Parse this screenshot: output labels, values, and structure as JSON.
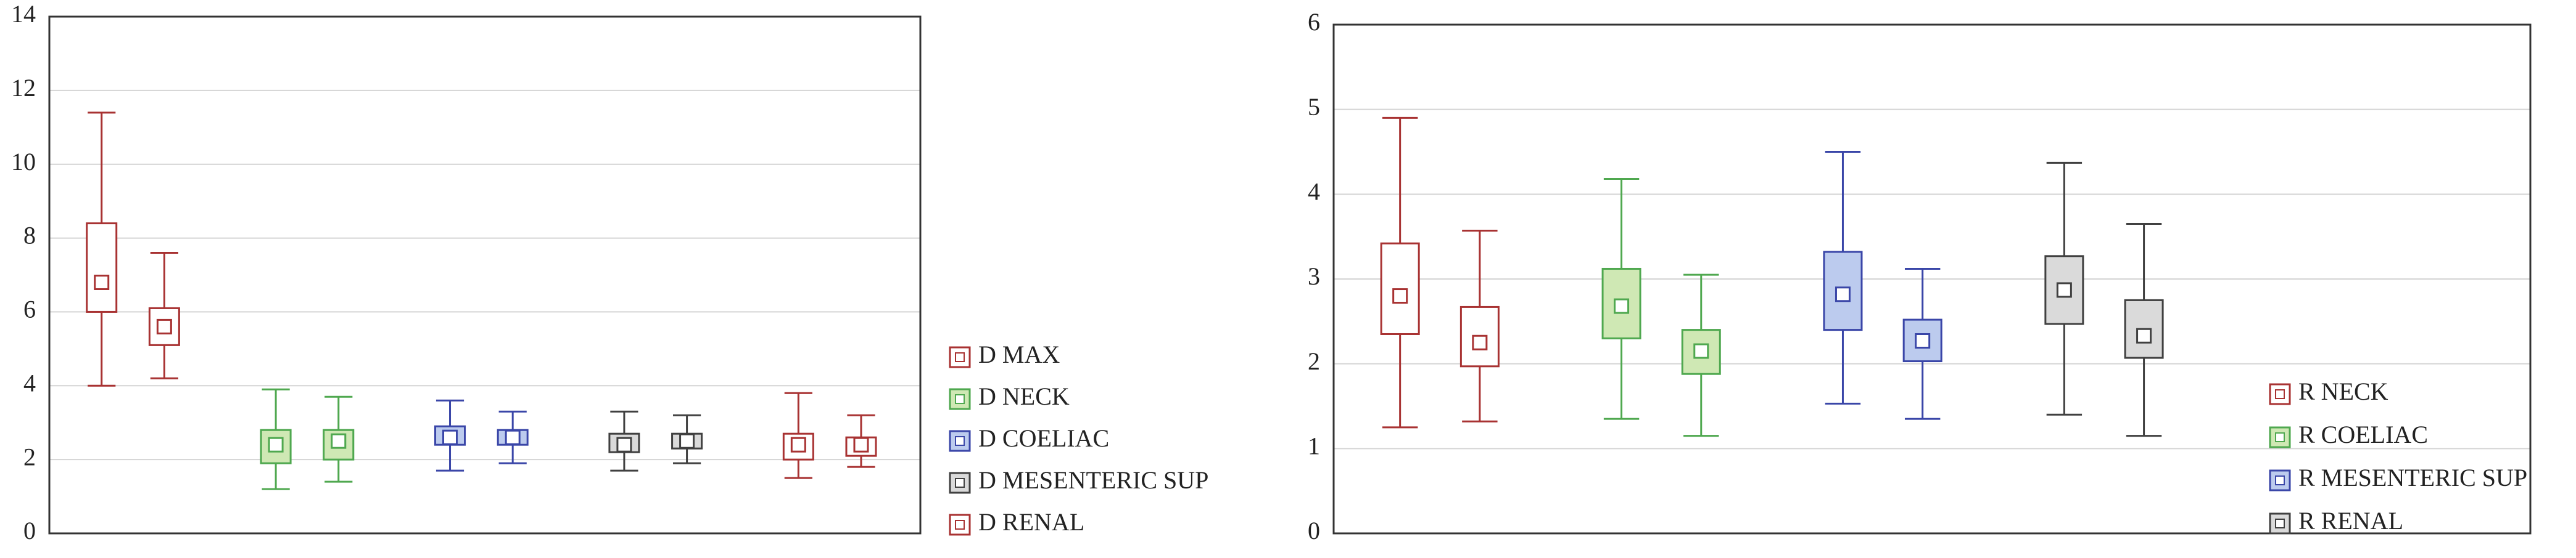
{
  "chart_data": [
    {
      "type": "box",
      "ylim": [
        0,
        14
      ],
      "yticks": [
        0,
        2,
        4,
        6,
        8,
        10,
        12,
        14
      ],
      "grid": true,
      "legend": "right",
      "series": [
        {
          "name": "D MAX",
          "color": "#a83232",
          "fill": "#ffffff",
          "boxes": [
            {
              "min": 4.0,
              "q1": 6.0,
              "median": 6.8,
              "q3": 8.4,
              "max": 11.4
            },
            {
              "min": 4.2,
              "q1": 5.1,
              "median": 5.6,
              "q3": 6.1,
              "max": 7.6
            }
          ]
        },
        {
          "name": "D NECK",
          "color": "#4fa84f",
          "fill": "#cfe8b4",
          "boxes": [
            {
              "min": 1.2,
              "q1": 1.9,
              "median": 2.4,
              "q3": 2.8,
              "max": 3.9
            },
            {
              "min": 1.4,
              "q1": 2.0,
              "median": 2.5,
              "q3": 2.8,
              "max": 3.7
            }
          ]
        },
        {
          "name": "D COELIAC",
          "color": "#3a46a8",
          "fill": "#bccbee",
          "boxes": [
            {
              "min": 1.7,
              "q1": 2.4,
              "median": 2.6,
              "q3": 2.9,
              "max": 3.6
            },
            {
              "min": 1.9,
              "q1": 2.4,
              "median": 2.6,
              "q3": 2.8,
              "max": 3.3
            }
          ]
        },
        {
          "name": "D MESENTERIC SUP",
          "color": "#404040",
          "fill": "#dadada",
          "boxes": [
            {
              "min": 1.7,
              "q1": 2.2,
              "median": 2.4,
              "q3": 2.7,
              "max": 3.3
            },
            {
              "min": 1.9,
              "q1": 2.3,
              "median": 2.5,
              "q3": 2.7,
              "max": 3.2
            }
          ]
        },
        {
          "name": "D RENAL",
          "color": "#a83232",
          "fill": "#ffffff",
          "boxes": [
            {
              "min": 1.5,
              "q1": 2.0,
              "median": 2.4,
              "q3": 2.7,
              "max": 3.8
            },
            {
              "min": 1.8,
              "q1": 2.1,
              "median": 2.4,
              "q3": 2.6,
              "max": 3.2
            }
          ]
        }
      ]
    },
    {
      "type": "box",
      "ylim": [
        0,
        6
      ],
      "yticks": [
        0,
        1,
        2,
        3,
        4,
        5,
        6
      ],
      "grid": true,
      "legend": "lower right",
      "series": [
        {
          "name": "R NECK",
          "color": "#a83232",
          "fill": "#ffffff",
          "boxes": [
            {
              "min": 1.25,
              "q1": 2.35,
              "median": 2.8,
              "q3": 3.42,
              "max": 4.9
            },
            {
              "min": 1.32,
              "q1": 1.97,
              "median": 2.25,
              "q3": 2.67,
              "max": 3.57
            }
          ]
        },
        {
          "name": "R COELIAC",
          "color": "#4fa84f",
          "fill": "#cfe8b4",
          "boxes": [
            {
              "min": 1.35,
              "q1": 2.3,
              "median": 2.68,
              "q3": 3.12,
              "max": 4.18
            },
            {
              "min": 1.15,
              "q1": 1.88,
              "median": 2.15,
              "q3": 2.4,
              "max": 3.05
            }
          ]
        },
        {
          "name": "R MESENTERIC SUP",
          "color": "#3a46a8",
          "fill": "#bccbee",
          "boxes": [
            {
              "min": 1.53,
              "q1": 2.4,
              "median": 2.82,
              "q3": 3.32,
              "max": 4.5
            },
            {
              "min": 1.35,
              "q1": 2.03,
              "median": 2.27,
              "q3": 2.52,
              "max": 3.12
            }
          ]
        },
        {
          "name": "R RENAL",
          "color": "#404040",
          "fill": "#dadada",
          "boxes": [
            {
              "min": 1.4,
              "q1": 2.47,
              "median": 2.87,
              "q3": 3.27,
              "max": 4.37
            },
            {
              "min": 1.15,
              "q1": 2.07,
              "median": 2.33,
              "q3": 2.75,
              "max": 3.65
            }
          ]
        }
      ]
    }
  ]
}
